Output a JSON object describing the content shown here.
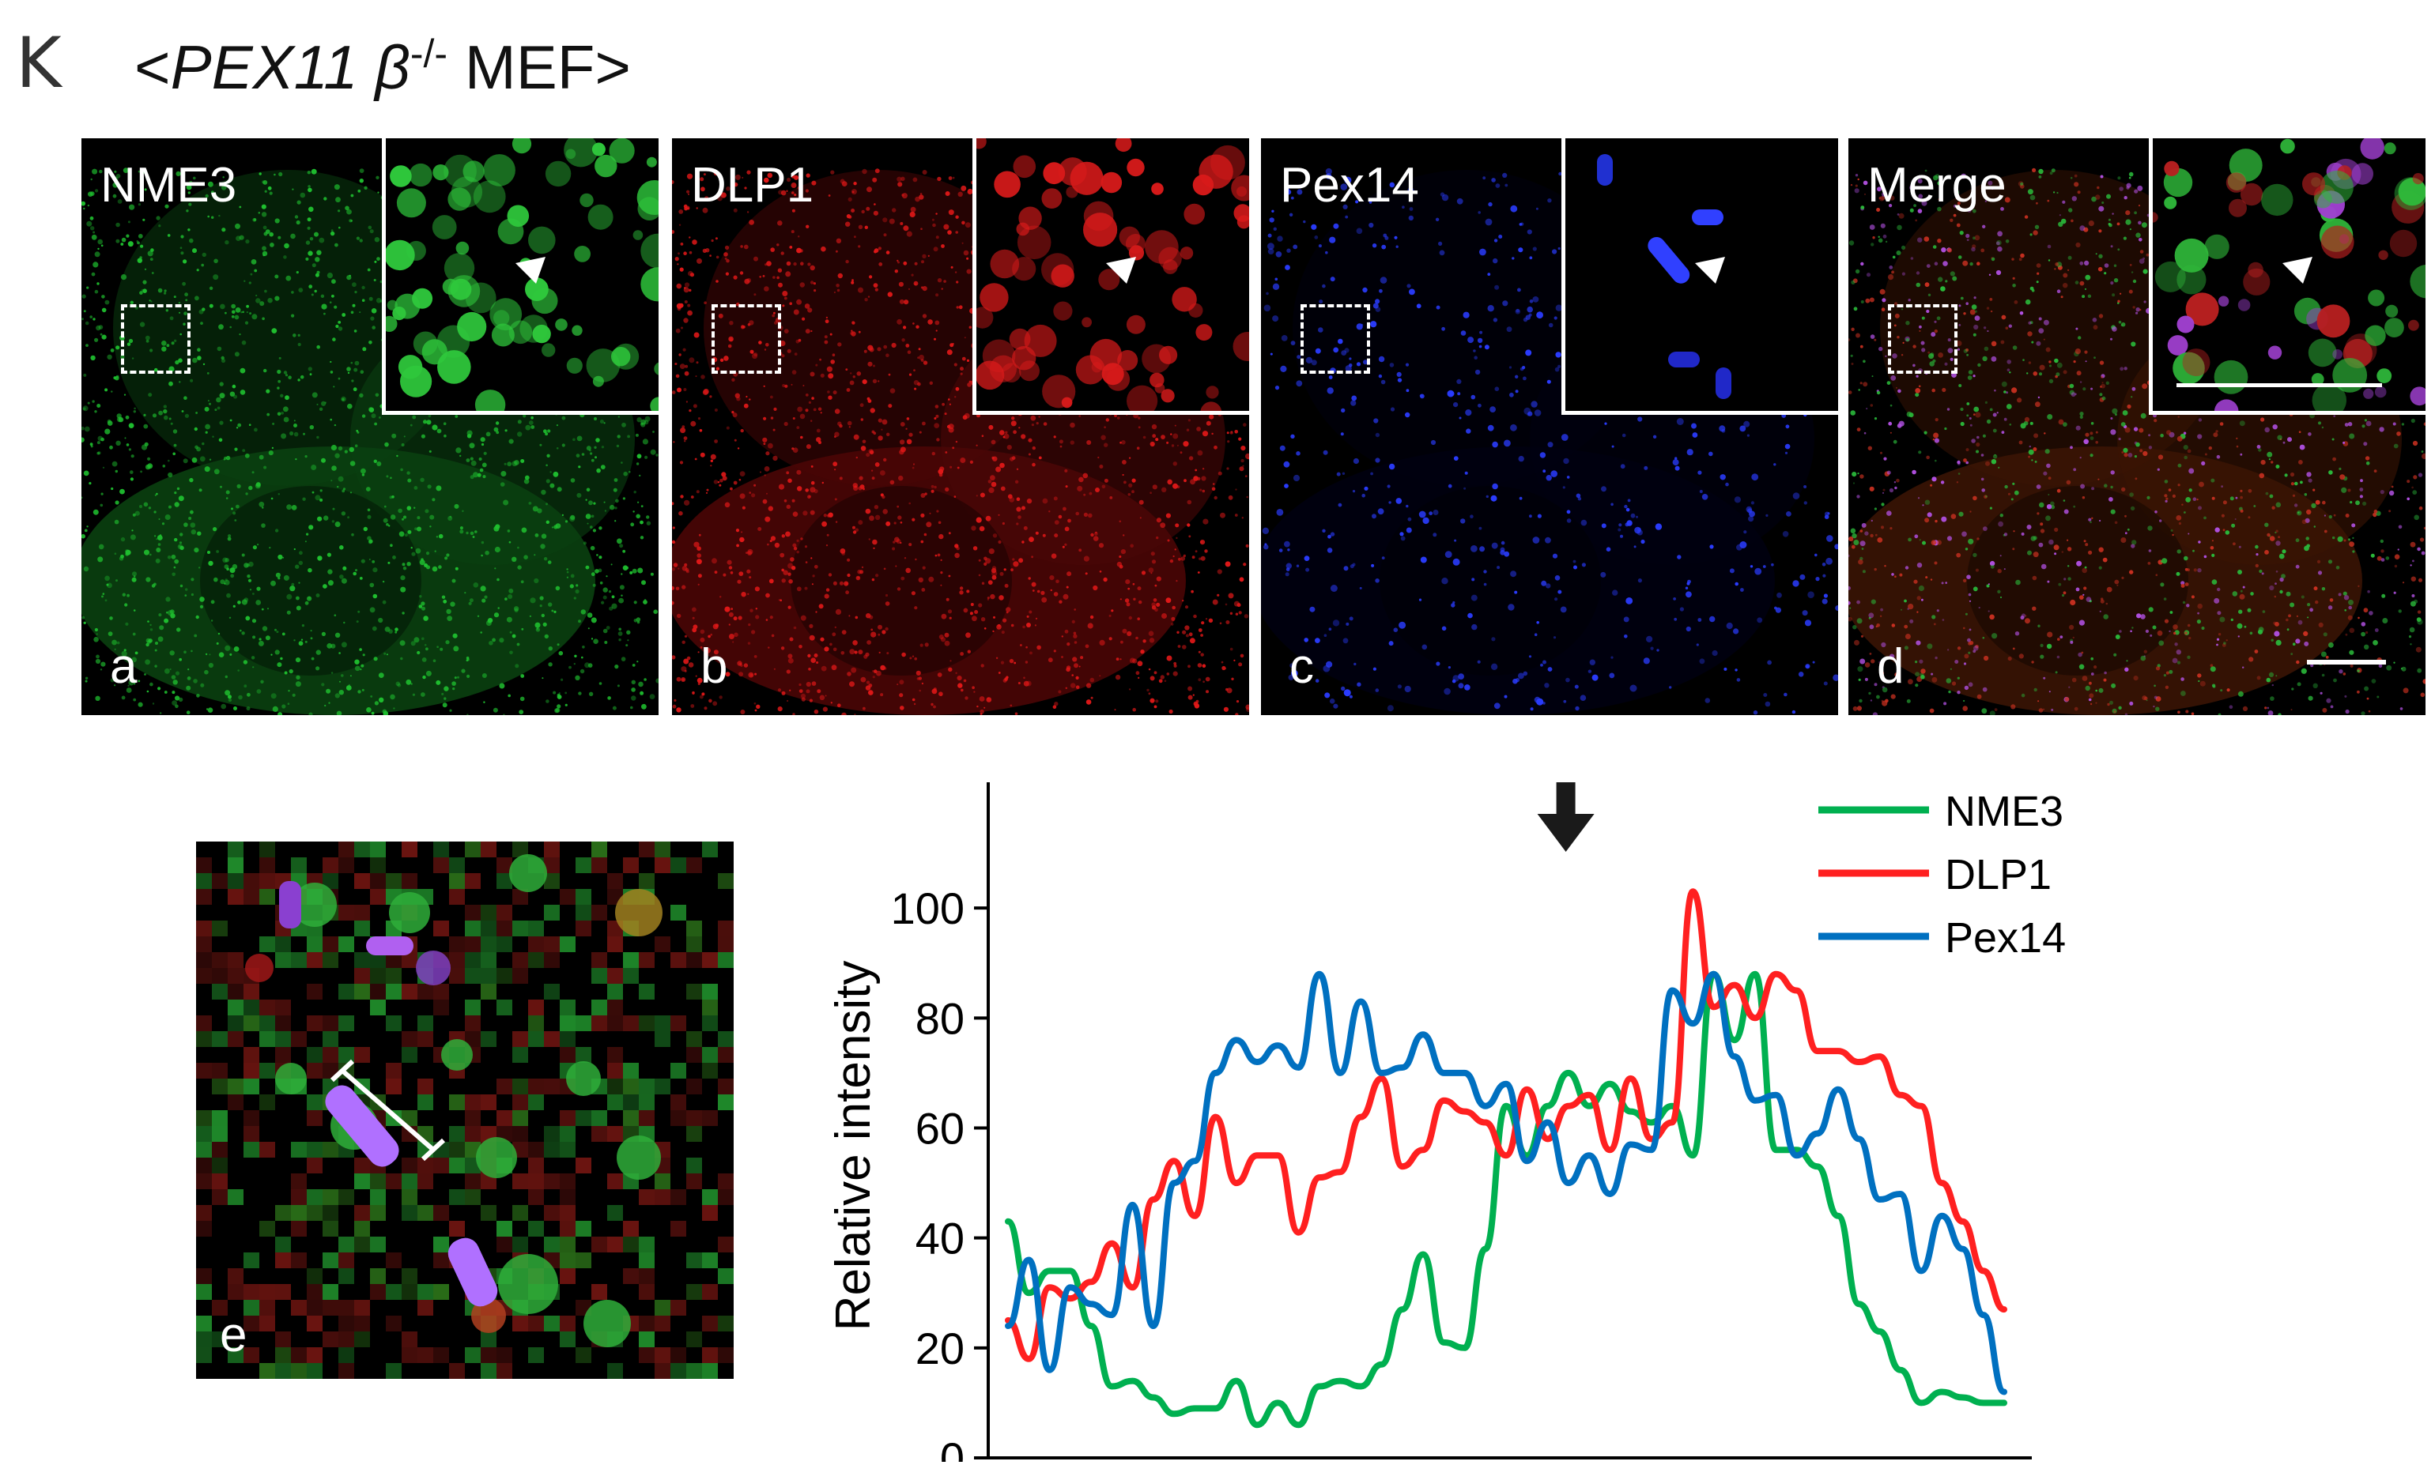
{
  "figure": {
    "panel_letter": "K",
    "title_prefix": "<",
    "title_gene": "PEX11",
    "title_beta": "β",
    "title_sup": "-/-",
    "title_suffix": " MEF>"
  },
  "micrographs": [
    {
      "label": "NME3",
      "letter": "a",
      "color": "#2ecc40"
    },
    {
      "label": "DLP1",
      "letter": "b",
      "color": "#ff2020"
    },
    {
      "label": "Pex14",
      "letter": "c",
      "color": "#2020ff"
    },
    {
      "label": "Merge",
      "letter": "d",
      "color": "#c050e0"
    }
  ],
  "zoom_panel": {
    "letter": "e"
  },
  "chart_data": {
    "type": "line",
    "ylabel": "Relative intensity",
    "xlabel": "",
    "ylim": [
      0,
      120
    ],
    "yticks": [
      0,
      20,
      40,
      60,
      80,
      100
    ],
    "arrow_at_x": 56,
    "series": [
      {
        "name": "NME3",
        "color": "#00b050",
        "values": [
          43,
          30,
          34,
          34,
          24,
          13,
          14,
          11,
          8,
          9,
          9,
          14,
          6,
          10,
          6,
          13,
          14,
          13,
          17,
          27,
          37,
          21,
          20,
          38,
          64,
          55,
          64,
          70,
          64,
          68,
          63,
          61,
          64,
          55,
          88,
          76,
          88,
          56,
          56,
          53,
          44,
          28,
          23,
          16,
          10,
          12,
          11,
          10,
          10
        ]
      },
      {
        "name": "DLP1",
        "color": "#ff2020",
        "values": [
          25,
          18,
          31,
          29,
          32,
          39,
          31,
          47,
          54,
          44,
          62,
          50,
          55,
          55,
          41,
          51,
          52,
          62,
          69,
          53,
          56,
          65,
          63,
          61,
          55,
          67,
          58,
          64,
          66,
          56,
          69,
          58,
          61,
          103,
          82,
          86,
          80,
          88,
          85,
          74,
          74,
          72,
          73,
          66,
          64,
          50,
          43,
          34,
          27
        ]
      },
      {
        "name": "Pex14",
        "color": "#0070c0",
        "values": [
          24,
          36,
          16,
          31,
          28,
          26,
          46,
          24,
          50,
          54,
          70,
          76,
          72,
          75,
          71,
          88,
          70,
          83,
          70,
          71,
          77,
          70,
          70,
          64,
          68,
          54,
          61,
          50,
          55,
          48,
          57,
          56,
          85,
          79,
          88,
          73,
          65,
          66,
          55,
          59,
          67,
          58,
          47,
          48,
          34,
          44,
          38,
          26,
          12
        ]
      }
    ]
  }
}
